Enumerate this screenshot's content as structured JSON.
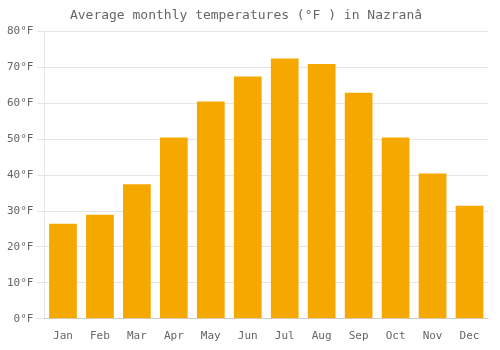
{
  "chart_data": {
    "type": "bar",
    "title": "Average monthly temperatures (°F ) in Nazranâ",
    "categories": [
      "Jan",
      "Feb",
      "Mar",
      "Apr",
      "May",
      "Jun",
      "Jul",
      "Aug",
      "Sep",
      "Oct",
      "Nov",
      "Dec"
    ],
    "values": [
      26.5,
      29.0,
      37.5,
      50.5,
      60.5,
      67.5,
      72.5,
      71.0,
      63.0,
      50.5,
      40.5,
      31.5
    ],
    "color": "#F5A800",
    "ylim": [
      0,
      80
    ],
    "yticks": [
      {
        "value": 0,
        "label": "0°F"
      },
      {
        "value": 10,
        "label": "10°F"
      },
      {
        "value": 20,
        "label": "20°F"
      },
      {
        "value": 30,
        "label": "30°F"
      },
      {
        "value": 40,
        "label": "40°F"
      },
      {
        "value": 50,
        "label": "50°F"
      },
      {
        "value": 60,
        "label": "60°F"
      },
      {
        "value": 70,
        "label": "70°F"
      },
      {
        "value": 80,
        "label": "80°F"
      }
    ],
    "grid": true
  }
}
